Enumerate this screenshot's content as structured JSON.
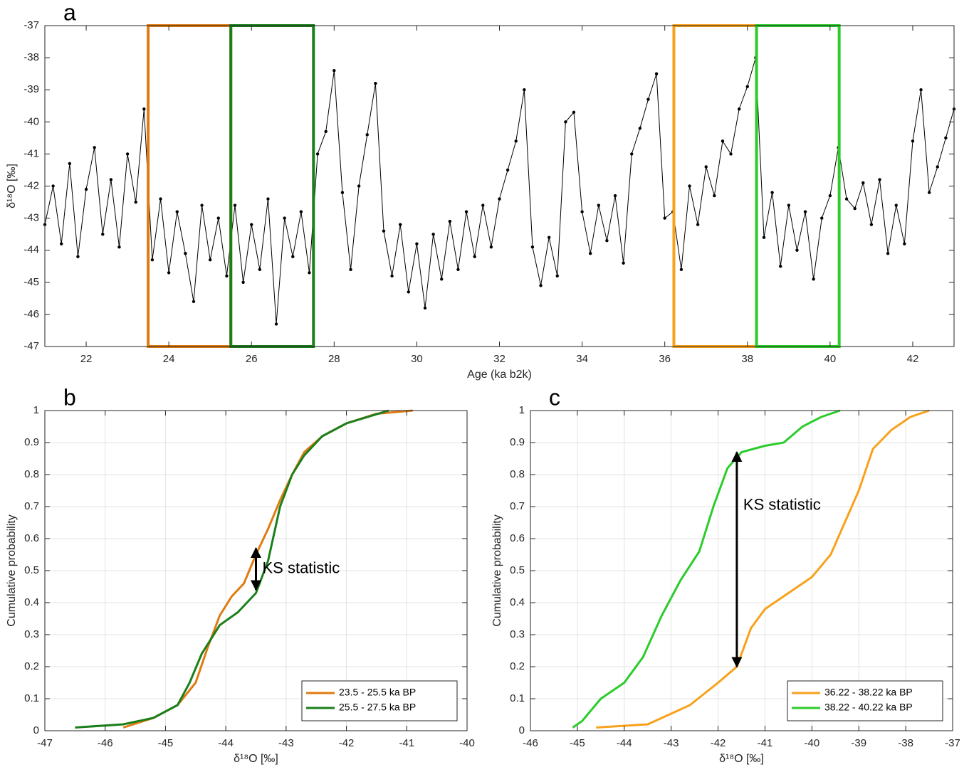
{
  "chart_data": [
    {
      "type": "line",
      "panel_label": "a",
      "xlabel": "Age (ka b2k)",
      "ylabel": "δ¹⁸O [‰]",
      "xlim": [
        21,
        43
      ],
      "xticks": [
        22,
        24,
        26,
        28,
        30,
        32,
        34,
        36,
        38,
        40,
        42
      ],
      "ylim": [
        -47,
        -37
      ],
      "yticks": [
        -47,
        -46,
        -45,
        -44,
        -43,
        -42,
        -41,
        -40,
        -39,
        -38,
        -37
      ],
      "grid": false,
      "highlights": [
        {
          "xrange": [
            23.5,
            25.5
          ],
          "color": "#e07b12"
        },
        {
          "xrange": [
            25.5,
            27.5
          ],
          "color": "#1a7f1a"
        },
        {
          "xrange": [
            36.22,
            38.22
          ],
          "color": "#f8a11b"
        },
        {
          "xrange": [
            38.22,
            40.22
          ],
          "color": "#2ccc2c"
        }
      ],
      "x": [
        21.0,
        21.2,
        21.4,
        21.6,
        21.8,
        22.0,
        22.2,
        22.4,
        22.6,
        22.8,
        23.0,
        23.2,
        23.4,
        23.6,
        23.8,
        24.0,
        24.2,
        24.4,
        24.6,
        24.8,
        25.0,
        25.2,
        25.4,
        25.6,
        25.8,
        26.0,
        26.2,
        26.4,
        26.6,
        26.8,
        27.0,
        27.2,
        27.4,
        27.6,
        27.8,
        28.0,
        28.2,
        28.4,
        28.6,
        28.8,
        29.0,
        29.2,
        29.4,
        29.6,
        29.8,
        30.0,
        30.2,
        30.4,
        30.6,
        30.8,
        31.0,
        31.2,
        31.4,
        31.6,
        31.8,
        32.0,
        32.2,
        32.4,
        32.6,
        32.8,
        33.0,
        33.2,
        33.4,
        33.6,
        33.8,
        34.0,
        34.2,
        34.4,
        34.6,
        34.8,
        35.0,
        35.2,
        35.4,
        35.6,
        35.8,
        36.0,
        36.2,
        36.4,
        36.6,
        36.8,
        37.0,
        37.2,
        37.4,
        37.6,
        37.8,
        38.0,
        38.2,
        38.4,
        38.6,
        38.8,
        39.0,
        39.2,
        39.4,
        39.6,
        39.8,
        40.0,
        40.2,
        40.4,
        40.6,
        40.8,
        41.0,
        41.2,
        41.4,
        41.6,
        41.8,
        42.0,
        42.2,
        42.4,
        42.6,
        42.8,
        43.0
      ],
      "series": [
        {
          "color": "#000000",
          "marker": true,
          "values": [
            -43.2,
            -42.0,
            -43.8,
            -41.3,
            -44.2,
            -42.1,
            -40.8,
            -43.5,
            -41.8,
            -43.9,
            -41.0,
            -42.5,
            -39.6,
            -44.3,
            -42.4,
            -44.7,
            -42.8,
            -44.1,
            -45.6,
            -42.6,
            -44.3,
            -43.0,
            -44.8,
            -42.6,
            -45.0,
            -43.2,
            -44.6,
            -42.4,
            -46.3,
            -43.0,
            -44.2,
            -42.8,
            -44.7,
            -41.0,
            -40.3,
            -38.4,
            -42.2,
            -44.6,
            -42.0,
            -40.4,
            -38.8,
            -43.4,
            -44.8,
            -43.2,
            -45.3,
            -43.8,
            -45.8,
            -43.5,
            -44.9,
            -43.1,
            -44.6,
            -42.8,
            -44.2,
            -42.6,
            -43.9,
            -42.4,
            -41.5,
            -40.6,
            -39.0,
            -43.9,
            -45.1,
            -43.6,
            -44.8,
            -40.0,
            -39.7,
            -42.8,
            -44.1,
            -42.6,
            -43.7,
            -42.3,
            -44.4,
            -41.0,
            -40.2,
            -39.3,
            -38.5,
            -43.0,
            -42.8,
            -44.6,
            -42.0,
            -43.2,
            -41.4,
            -42.3,
            -40.6,
            -41.0,
            -39.6,
            -38.9,
            -38.0,
            -43.6,
            -42.2,
            -44.5,
            -42.6,
            -44.0,
            -42.8,
            -44.9,
            -43.0,
            -42.3,
            -40.8,
            -42.4,
            -42.7,
            -41.9,
            -43.2,
            -41.8,
            -44.1,
            -42.6,
            -43.8,
            -40.6,
            -39.0,
            -42.2,
            -41.4,
            -40.5,
            -39.6
          ]
        }
      ]
    },
    {
      "type": "line",
      "panel_label": "b",
      "xlabel": "δ¹⁸O [‰]",
      "ylabel": "Cumulative probability",
      "xlim": [
        -47,
        -40
      ],
      "xticks": [
        -47,
        -46,
        -45,
        -44,
        -43,
        -42,
        -41,
        -40
      ],
      "ylim": [
        0,
        1
      ],
      "yticks": [
        0,
        0.1,
        0.2,
        0.3,
        0.4,
        0.5,
        0.6,
        0.7,
        0.8,
        0.9,
        1
      ],
      "grid": true,
      "legend": "lower right",
      "series": [
        {
          "name": "23.5 - 25.5 ka BP",
          "color": "#e07b12",
          "x": [
            -45.7,
            -45.2,
            -44.8,
            -44.5,
            -44.3,
            -44.1,
            -43.9,
            -43.7,
            -43.5,
            -43.3,
            -43.1,
            -42.9,
            -42.7,
            -42.4,
            -42.0,
            -41.5,
            -40.9
          ],
          "values": [
            0.01,
            0.04,
            0.08,
            0.15,
            0.26,
            0.36,
            0.42,
            0.46,
            0.55,
            0.63,
            0.72,
            0.8,
            0.87,
            0.92,
            0.96,
            0.99,
            1.0
          ]
        },
        {
          "name": "25.5 - 27.5 ka BP",
          "color": "#1a7f1a",
          "x": [
            -46.5,
            -45.7,
            -45.2,
            -44.8,
            -44.6,
            -44.4,
            -44.1,
            -43.8,
            -43.5,
            -43.3,
            -43.1,
            -42.9,
            -42.7,
            -42.4,
            -42.0,
            -41.3
          ],
          "values": [
            0.01,
            0.02,
            0.04,
            0.08,
            0.15,
            0.24,
            0.33,
            0.37,
            0.43,
            0.53,
            0.7,
            0.8,
            0.86,
            0.92,
            0.96,
            1.0
          ]
        }
      ],
      "annotation": {
        "text": "KS statistic",
        "x": -43.5,
        "y": [
          0.44,
          0.57
        ]
      }
    },
    {
      "type": "line",
      "panel_label": "c",
      "xlabel": "δ¹⁸O [‰]",
      "ylabel": "Cumulative probability",
      "xlim": [
        -46,
        -37
      ],
      "xticks": [
        -46,
        -45,
        -44,
        -43,
        -42,
        -41,
        -40,
        -39,
        -38,
        -37
      ],
      "ylim": [
        0,
        1
      ],
      "yticks": [
        0,
        0.1,
        0.2,
        0.3,
        0.4,
        0.5,
        0.6,
        0.7,
        0.8,
        0.9,
        1
      ],
      "grid": true,
      "legend": "lower right",
      "series": [
        {
          "name": "36.22 - 38.22 ka BP",
          "color": "#f8a11b",
          "x": [
            -44.6,
            -43.5,
            -42.6,
            -42.0,
            -41.6,
            -41.3,
            -41.0,
            -40.5,
            -40.0,
            -39.6,
            -39.3,
            -39.0,
            -38.7,
            -38.3,
            -37.9,
            -37.5
          ],
          "values": [
            0.01,
            0.02,
            0.08,
            0.15,
            0.2,
            0.32,
            0.38,
            0.43,
            0.48,
            0.55,
            0.65,
            0.75,
            0.88,
            0.94,
            0.98,
            1.0
          ]
        },
        {
          "name": "38.22 - 40.22 ka BP",
          "color": "#2ccc2c",
          "x": [
            -45.1,
            -44.9,
            -44.5,
            -44.0,
            -43.6,
            -43.2,
            -42.8,
            -42.4,
            -42.1,
            -41.8,
            -41.5,
            -41.0,
            -40.6,
            -40.2,
            -39.8,
            -39.4
          ],
          "values": [
            0.01,
            0.03,
            0.1,
            0.15,
            0.23,
            0.36,
            0.47,
            0.56,
            0.7,
            0.82,
            0.87,
            0.89,
            0.9,
            0.95,
            0.98,
            1.0
          ]
        }
      ],
      "annotation": {
        "text": "KS statistic",
        "x": -41.6,
        "y": [
          0.2,
          0.87
        ]
      }
    }
  ]
}
